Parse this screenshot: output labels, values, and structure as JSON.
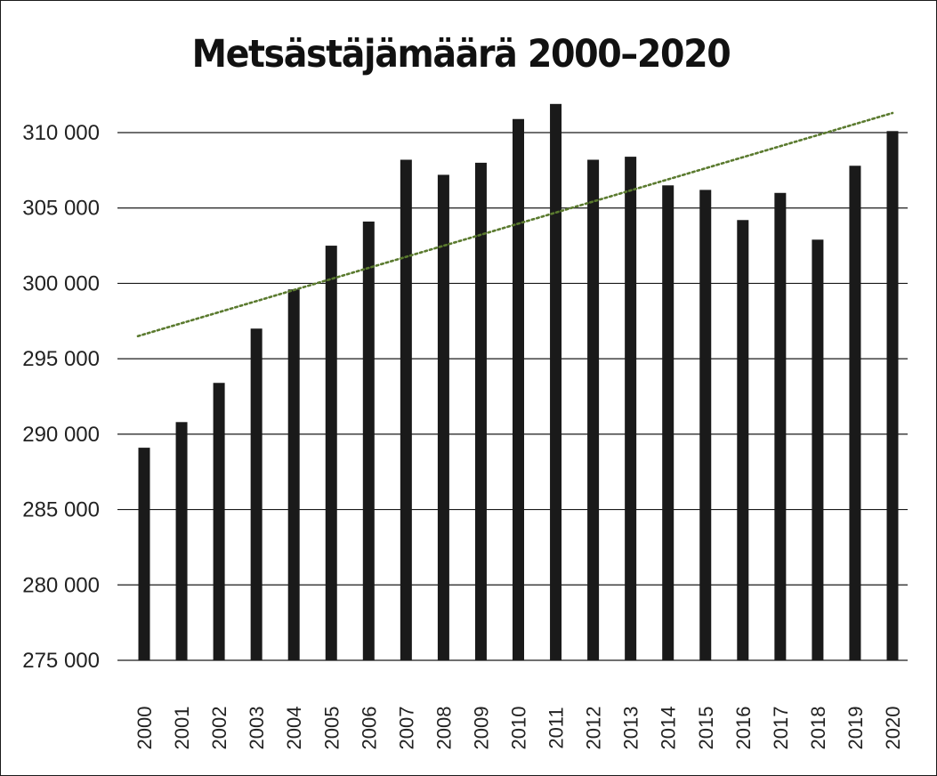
{
  "chart_data": {
    "type": "bar",
    "title": "Metsästäjämäärä 2000–2020",
    "xlabel": "",
    "ylabel": "",
    "categories": [
      "2000",
      "2001",
      "2002",
      "2003",
      "2004",
      "2005",
      "2006",
      "2007",
      "2008",
      "2009",
      "2010",
      "2011",
      "2012",
      "2013",
      "2014",
      "2015",
      "2016",
      "2017",
      "2018",
      "2019",
      "2020"
    ],
    "values": [
      289100,
      290800,
      293400,
      297000,
      299600,
      302500,
      304100,
      308200,
      307200,
      308000,
      310900,
      311900,
      308200,
      308400,
      306500,
      306200,
      304200,
      306000,
      302900,
      307800,
      310100
    ],
    "ylim": [
      275000,
      312800
    ],
    "yticks": [
      275000,
      280000,
      285000,
      290000,
      295000,
      300000,
      305000,
      310000
    ],
    "ytick_labels": [
      "275 000",
      "280 000",
      "285 000",
      "290 000",
      "295 000",
      "300 000",
      "305 000",
      "310 000"
    ],
    "grid": true,
    "bar_color": "#1a1a1a",
    "trendline": {
      "style": "dotted",
      "color": "#5a7a2e",
      "start": {
        "x": "2000",
        "y": 296500
      },
      "end": {
        "x": "2020",
        "y": 311300
      }
    }
  }
}
